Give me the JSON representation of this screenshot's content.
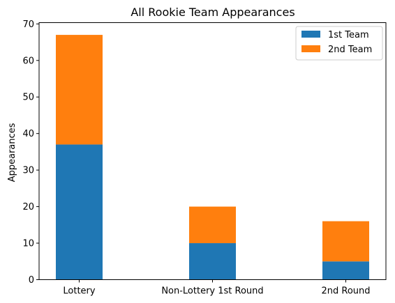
{
  "chart_data": {
    "type": "bar",
    "stacked": true,
    "title": "All Rookie Team Appearances",
    "xlabel": "",
    "ylabel": "Appearances",
    "categories": [
      "Lottery",
      "Non-Lottery 1st Round",
      "2nd Round"
    ],
    "series": [
      {
        "name": "1st Team",
        "values": [
          37,
          10,
          5
        ],
        "color": "#1f77b4"
      },
      {
        "name": "2nd Team",
        "values": [
          30,
          10,
          11
        ],
        "color": "#ff7f0e"
      }
    ],
    "ylim": [
      0,
      70.35
    ],
    "yticks": [
      "0",
      "10",
      "20",
      "30",
      "40",
      "50",
      "60",
      "70"
    ],
    "grid": false,
    "legend_position": "top-right"
  }
}
